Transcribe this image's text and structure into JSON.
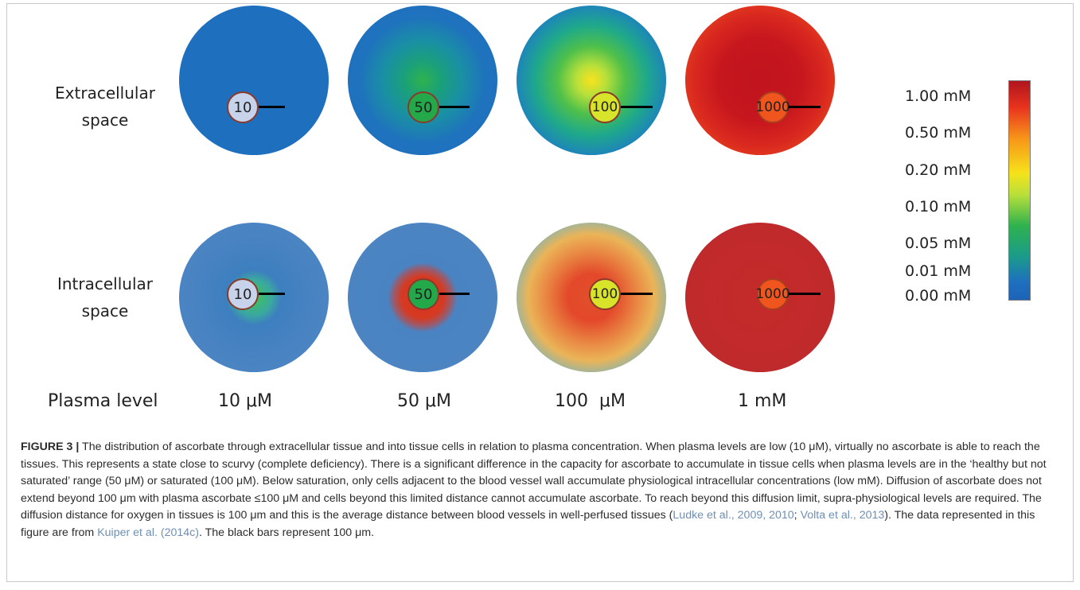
{
  "rows": {
    "extracellular": "Extracellular\nspace",
    "intracellular": "Intracellular\nspace"
  },
  "plasma_row_label": "Plasma level",
  "columns": [
    {
      "plasma": "10 μM",
      "vessel_label": "10"
    },
    {
      "plasma": "50 μM",
      "vessel_label": "50"
    },
    {
      "plasma": "100  μM",
      "vessel_label": "100"
    },
    {
      "plasma": "1 mM",
      "vessel_label": "1000"
    }
  ],
  "legend": {
    "ticks": [
      "1.00 mM",
      "0.50 mM",
      "0.20 mM",
      "0.10 mM",
      "0.05 mM",
      "0.01 mM",
      "0.00 mM"
    ],
    "colors": {
      "top": "#b0141e",
      "mid": "#f6e21a",
      "bottom": "#1c63b8"
    }
  },
  "caption": {
    "lead": "FIGURE 3 |",
    "text1": " The distribution of ascorbate through extracellular tissue and into tissue cells in relation to plasma concentration. When plasma levels are low (10 μM), virtually no ascorbate is able to reach the tissues. This represents a state close to scurvy (complete deficiency). There is a significant difference in the capacity for ascorbate to accumulate in tissue cells when plasma levels are in the ‘healthy but not saturated’ range (50 μM) or saturated (100 μM). Below saturation, only cells adjacent to the blood vessel wall accumulate physiological intracellular concentrations (low mM). Diffusion of ascorbate does not extend beyond 100 μm with plasma ascorbate ≤100 μM and cells beyond this limited distance cannot accumulate ascorbate. To reach beyond this diffusion limit, supra-physiological levels are required. The diffusion distance for oxygen in tissues is 100 μm and this is the average distance between blood vessels in well-perfused tissues (",
    "ref1": "Ludke et al., 2009, 2010",
    "sep1": "; ",
    "ref2": "Volta et al., 2013",
    "text2": "). The data represented in this figure are from ",
    "ref3": "Kuiper et al. (2014c)",
    "text3": ". The black bars represent 100 μm."
  }
}
